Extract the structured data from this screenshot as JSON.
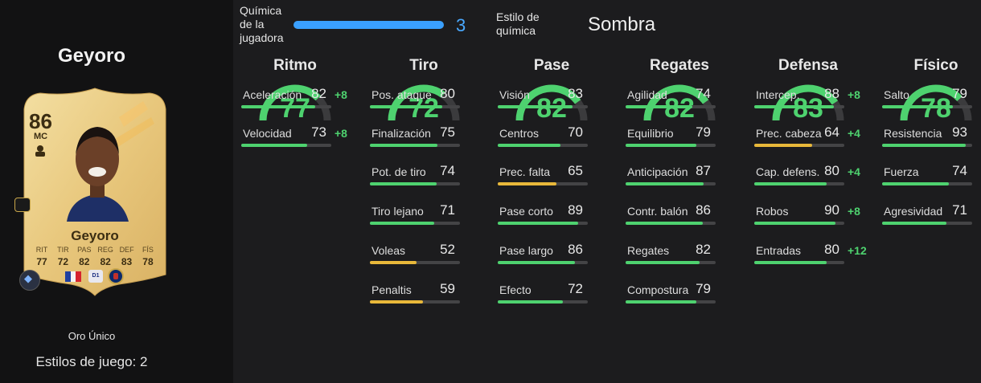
{
  "player": {
    "title": "Geyoro",
    "card_rating": "86",
    "card_position": "MC",
    "card_name": "Geyoro",
    "card_stat_labels": [
      "RIT",
      "TIR",
      "PAS",
      "REG",
      "DEF",
      "FÍS"
    ],
    "card_stat_values": [
      "77",
      "72",
      "82",
      "82",
      "83",
      "78"
    ],
    "rarity": "Oro Único",
    "playstyles": "Estilos de juego: 2"
  },
  "header": {
    "chem_label": "Química de la jugadora",
    "chem_value": "3",
    "chem_fill_fraction": 1.0,
    "style_label": "Estilo de química",
    "style_value": "Sombra"
  },
  "colors": {
    "green": "#4ed26f",
    "yellow": "#e8b83a",
    "chem_blue": "#3aa0ff",
    "gauge_track": "#3b3b3d"
  },
  "columns": [
    {
      "title": "Ritmo",
      "value": "77",
      "stats": [
        {
          "name": "Aceleración",
          "value": "82",
          "bonus": "+8"
        },
        {
          "name": "Velocidad",
          "value": "73",
          "bonus": "+8"
        }
      ]
    },
    {
      "title": "Tiro",
      "value": "72",
      "stats": [
        {
          "name": "Pos. ataque",
          "value": "80"
        },
        {
          "name": "Finalización",
          "value": "75"
        },
        {
          "name": "Pot. de tiro",
          "value": "74"
        },
        {
          "name": "Tiro lejano",
          "value": "71"
        },
        {
          "name": "Voleas",
          "value": "52"
        },
        {
          "name": "Penaltis",
          "value": "59"
        }
      ]
    },
    {
      "title": "Pase",
      "value": "82",
      "stats": [
        {
          "name": "Visión",
          "value": "83"
        },
        {
          "name": "Centros",
          "value": "70"
        },
        {
          "name": "Prec. falta",
          "value": "65"
        },
        {
          "name": "Pase corto",
          "value": "89"
        },
        {
          "name": "Pase largo",
          "value": "86"
        },
        {
          "name": "Efecto",
          "value": "72"
        }
      ]
    },
    {
      "title": "Regates",
      "value": "82",
      "stats": [
        {
          "name": "Agilidad",
          "value": "74"
        },
        {
          "name": "Equilibrio",
          "value": "79"
        },
        {
          "name": "Anticipación",
          "value": "87"
        },
        {
          "name": "Contr. balón",
          "value": "86"
        },
        {
          "name": "Regates",
          "value": "82"
        },
        {
          "name": "Compostura",
          "value": "79"
        }
      ]
    },
    {
      "title": "Defensa",
      "value": "83",
      "stats": [
        {
          "name": "Intercep.",
          "value": "88",
          "bonus": "+8"
        },
        {
          "name": "Prec. cabeza",
          "value": "64",
          "bonus": "+4"
        },
        {
          "name": "Cap. defens.",
          "value": "80",
          "bonus": "+4"
        },
        {
          "name": "Robos",
          "value": "90",
          "bonus": "+8"
        },
        {
          "name": "Entradas",
          "value": "80",
          "bonus": "+12"
        }
      ]
    },
    {
      "title": "Físico",
      "value": "78",
      "stats": [
        {
          "name": "Salto",
          "value": "79"
        },
        {
          "name": "Resistencia",
          "value": "93"
        },
        {
          "name": "Fuerza",
          "value": "74"
        },
        {
          "name": "Agresividad",
          "value": "71"
        }
      ]
    }
  ]
}
